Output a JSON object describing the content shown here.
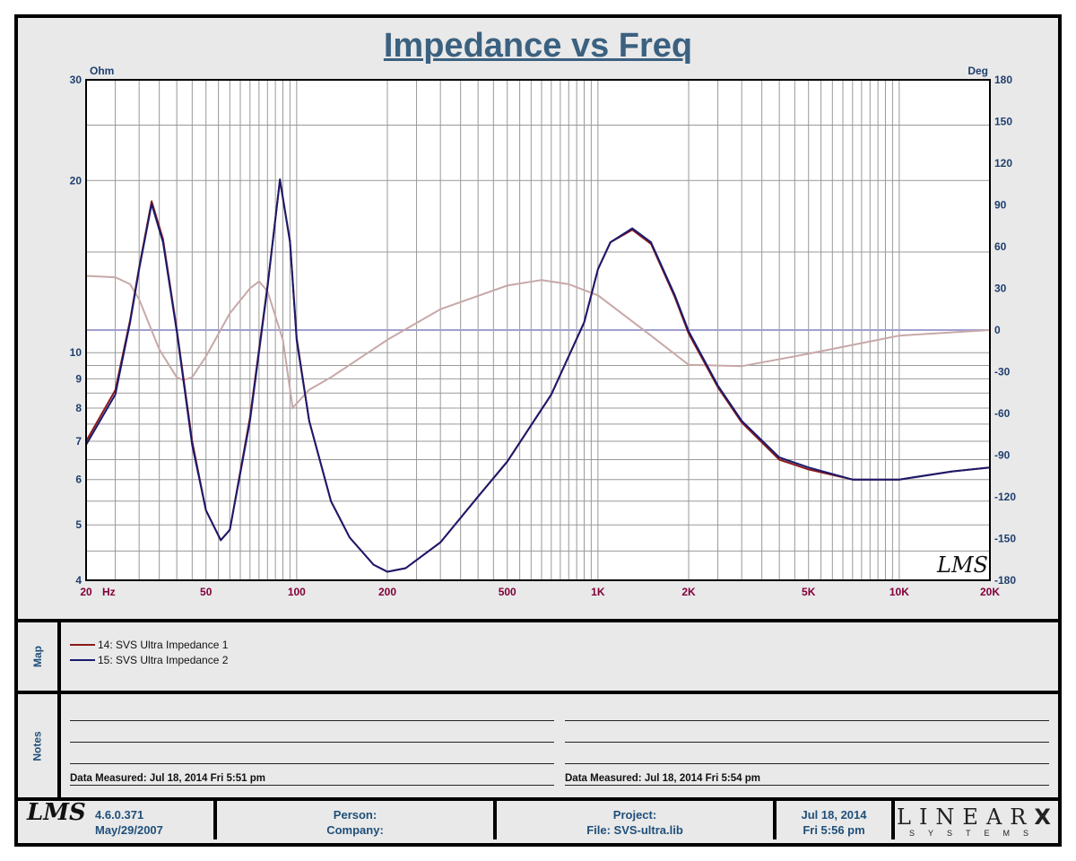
{
  "chart_data": {
    "type": "line",
    "title": "Impedance vs Freq",
    "xlabel": "Hz",
    "ylabel_left": "Ohm",
    "ylabel_right": "Deg",
    "x_scale": "log",
    "y_left_scale": "log",
    "xlim": [
      20,
      20000
    ],
    "ylim_left": [
      4,
      30
    ],
    "ylim_right": [
      -180,
      180
    ],
    "grid": true,
    "x_ticks": [
      {
        "v": 20,
        "label": "20"
      },
      {
        "v": 50,
        "label": "50"
      },
      {
        "v": 100,
        "label": "100"
      },
      {
        "v": 200,
        "label": "200"
      },
      {
        "v": 500,
        "label": "500"
      },
      {
        "v": 1000,
        "label": "1K"
      },
      {
        "v": 2000,
        "label": "2K"
      },
      {
        "v": 5000,
        "label": "5K"
      },
      {
        "v": 10000,
        "label": "10K"
      },
      {
        "v": 20000,
        "label": "20K"
      }
    ],
    "y_left_ticks": [
      4,
      5,
      6,
      7,
      8,
      9,
      10,
      20,
      30
    ],
    "y_right_ticks": [
      -180,
      -150,
      -120,
      -90,
      -60,
      -30,
      0,
      30,
      60,
      90,
      120,
      150,
      180
    ],
    "x": [
      20,
      25,
      28,
      30,
      33,
      36,
      40,
      45,
      50,
      56,
      60,
      70,
      80,
      88,
      95,
      100,
      110,
      130,
      150,
      180,
      200,
      230,
      300,
      400,
      500,
      700,
      900,
      1000,
      1100,
      1300,
      1500,
      1800,
      2000,
      2500,
      3000,
      4000,
      5000,
      7000,
      10000,
      15000,
      20000
    ],
    "series": [
      {
        "name": "14: SVS Ultra Impedance 1",
        "color": "#8b1a1a",
        "axis": "left",
        "values": [
          7.0,
          8.6,
          11.4,
          14.1,
          18.4,
          15.8,
          11.0,
          7.0,
          5.3,
          4.7,
          4.9,
          7.7,
          13.1,
          20.0,
          15.7,
          10.6,
          7.6,
          5.5,
          4.75,
          4.26,
          4.14,
          4.2,
          4.66,
          5.6,
          6.45,
          8.45,
          11.3,
          14.0,
          15.6,
          16.4,
          15.5,
          12.5,
          10.8,
          8.7,
          7.55,
          6.5,
          6.25,
          6.0,
          6.0,
          6.2,
          6.3
        ]
      },
      {
        "name": "15: SVS Ultra Impedance 2",
        "color": "#1a1a6e",
        "axis": "left",
        "values": [
          6.9,
          8.45,
          11.3,
          14.0,
          18.2,
          15.6,
          10.9,
          6.9,
          5.3,
          4.7,
          4.9,
          7.6,
          13.0,
          20.1,
          15.6,
          10.5,
          7.6,
          5.5,
          4.75,
          4.26,
          4.14,
          4.2,
          4.66,
          5.6,
          6.45,
          8.45,
          11.3,
          14.0,
          15.6,
          16.5,
          15.6,
          12.6,
          10.9,
          8.76,
          7.6,
          6.56,
          6.3,
          6.0,
          6.0,
          6.2,
          6.3
        ]
      }
    ],
    "phase": {
      "color": "#c8a8a8",
      "axis": "right",
      "x": [
        20,
        25,
        28,
        30,
        35,
        40,
        42,
        45,
        50,
        60,
        70,
        75,
        80,
        90,
        97,
        110,
        130,
        200,
        300,
        500,
        650,
        800,
        1000,
        1500,
        2000,
        3000,
        5000,
        10000,
        20000
      ],
      "values": [
        39,
        38,
        33,
        22,
        -14,
        -34,
        -36,
        -34,
        -19,
        12,
        30,
        35,
        28,
        -7,
        -56,
        -43,
        -34,
        -7,
        15,
        32,
        36,
        33,
        25,
        -4,
        -25,
        -26,
        -17,
        -4,
        0
      ]
    },
    "zero_line_color": "#a0a0d0"
  },
  "logo": "LMS",
  "map": {
    "label": "Map"
  },
  "notes": {
    "label": "Notes",
    "measured_1": "Data Measured: Jul 18, 2014  Fri  5:51 pm",
    "measured_2": "Data Measured: Jul 18, 2014  Fri  5:54 pm"
  },
  "footer": {
    "logo": "LMS",
    "version": "4.6.0.371",
    "version_date": "May/29/2007",
    "person": "Person:",
    "company": "Company:",
    "project": "Project:",
    "file": "File: SVS-ultra.lib",
    "date": "Jul 18, 2014",
    "time": "Fri  5:56 pm",
    "brand": "LINEAR",
    "brand_x": "X",
    "brand_sub": "SYSTEMS"
  }
}
